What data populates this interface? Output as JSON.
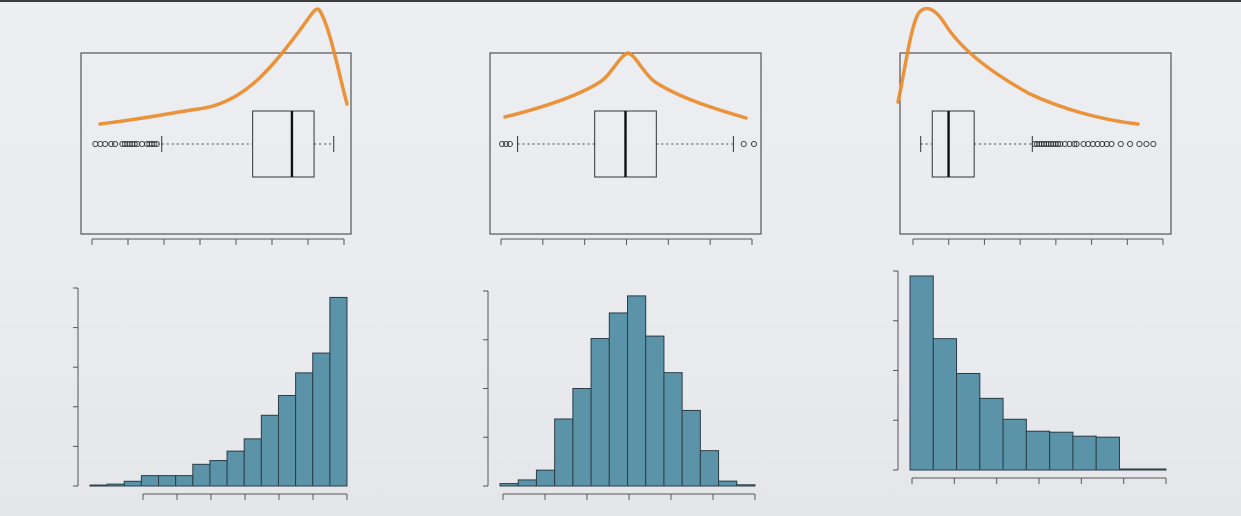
{
  "chart_data": [
    {
      "type": "boxplot",
      "skew": "left",
      "stats": {
        "min": 0.3,
        "q1": 0.67,
        "median": 0.83,
        "q3": 0.92,
        "max": 1.0
      },
      "outliers": [
        0.03,
        0.05,
        0.07,
        0.095,
        0.11,
        0.14,
        0.15,
        0.16,
        0.17,
        0.18,
        0.19,
        0.2,
        0.22,
        0.24,
        0.25,
        0.26,
        0.27,
        0.28
      ],
      "density_curve": {
        "color": "#ea8c2c",
        "peak": 0.9
      },
      "grid": false,
      "xlim": [
        0,
        1.05
      ]
    },
    {
      "type": "boxplot",
      "skew": "symmetric",
      "stats": {
        "min": 0.08,
        "q1": 0.38,
        "median": 0.5,
        "q3": 0.62,
        "max": 0.92
      },
      "outliers": [
        0.02,
        0.035,
        0.05,
        0.96,
        1.0
      ],
      "density_curve": {
        "color": "#ea8c2c",
        "peak": 0.5
      },
      "grid": false,
      "xlim": [
        0,
        1.0
      ]
    },
    {
      "type": "boxplot",
      "skew": "right",
      "stats": {
        "min": 0.0,
        "q1": 0.05,
        "median": 0.12,
        "q3": 0.23,
        "max": 0.48
      },
      "outliers": [
        0.49,
        0.5,
        0.51,
        0.52,
        0.53,
        0.54,
        0.55,
        0.56,
        0.57,
        0.58,
        0.59,
        0.6,
        0.62,
        0.64,
        0.66,
        0.67,
        0.7,
        0.72,
        0.74,
        0.76,
        0.78,
        0.8,
        0.82,
        0.86,
        0.9,
        0.94,
        0.97,
        1.0
      ],
      "density_curve": {
        "color": "#ea8c2c",
        "peak": 0.1
      },
      "grid": false,
      "xlim": [
        -0.05,
        1.05
      ]
    },
    {
      "type": "bar",
      "skew": "left",
      "values": [
        1,
        2,
        5,
        11,
        11,
        11,
        23,
        27,
        37,
        50,
        75,
        96,
        120,
        141,
        200
      ],
      "ylim": [
        0,
        210
      ],
      "color": "#5b93a8",
      "grid": false
    },
    {
      "type": "bar",
      "skew": "symmetric",
      "values": [
        2,
        5,
        13,
        55,
        80,
        121,
        142,
        156,
        123,
        93,
        62,
        29,
        4,
        1
      ],
      "ylim": [
        0,
        160
      ],
      "color": "#5b93a8",
      "grid": false
    },
    {
      "type": "bar",
      "skew": "right",
      "values": [
        195,
        132,
        97,
        72,
        51,
        39,
        38,
        34,
        33,
        1,
        1
      ],
      "ylim": [
        0,
        200
      ],
      "color": "#5b93a8",
      "grid": false
    }
  ]
}
